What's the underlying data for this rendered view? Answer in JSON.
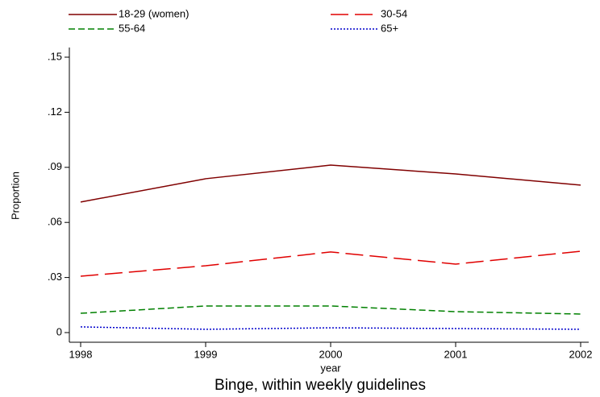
{
  "chart_data": {
    "type": "line",
    "subtitle": "Binge, within weekly guidelines",
    "x_label": "year",
    "y_label": "Proportion",
    "x": [
      1998,
      1999,
      2000,
      2001,
      2002
    ],
    "series": [
      {
        "name": "18-29 (women)",
        "color": "#800000",
        "dash": "none",
        "values": [
          0.0711,
          0.0838,
          0.0912,
          0.0864,
          0.0803
        ]
      },
      {
        "name": "30-54",
        "color": "#e00000",
        "dash": "22 8",
        "values": [
          0.0307,
          0.0364,
          0.0439,
          0.0373,
          0.0443
        ]
      },
      {
        "name": "55-64",
        "color": "#008000",
        "dash": "8 4",
        "values": [
          0.0105,
          0.0145,
          0.0145,
          0.0114,
          0.0101
        ]
      },
      {
        "name": "65+",
        "color": "#0000cc",
        "dash": "2 2",
        "values": [
          0.0031,
          0.0018,
          0.0026,
          0.0022,
          0.0018
        ]
      }
    ],
    "xlim": [
      1998,
      2002
    ],
    "xticks": [
      1998,
      1999,
      2000,
      2001,
      2002
    ],
    "ylim": [
      -0.005,
      0.155
    ],
    "yticks": [
      0,
      {
        "value": 0.03,
        "label": ".03"
      },
      {
        "value": 0.06,
        "label": ".06"
      },
      {
        "value": 0.09,
        "label": ".09"
      },
      {
        "value": 0.12,
        "label": ".12"
      },
      {
        "value": 0.15,
        "label": ".15"
      }
    ],
    "grid": false,
    "legend_position": "top"
  }
}
